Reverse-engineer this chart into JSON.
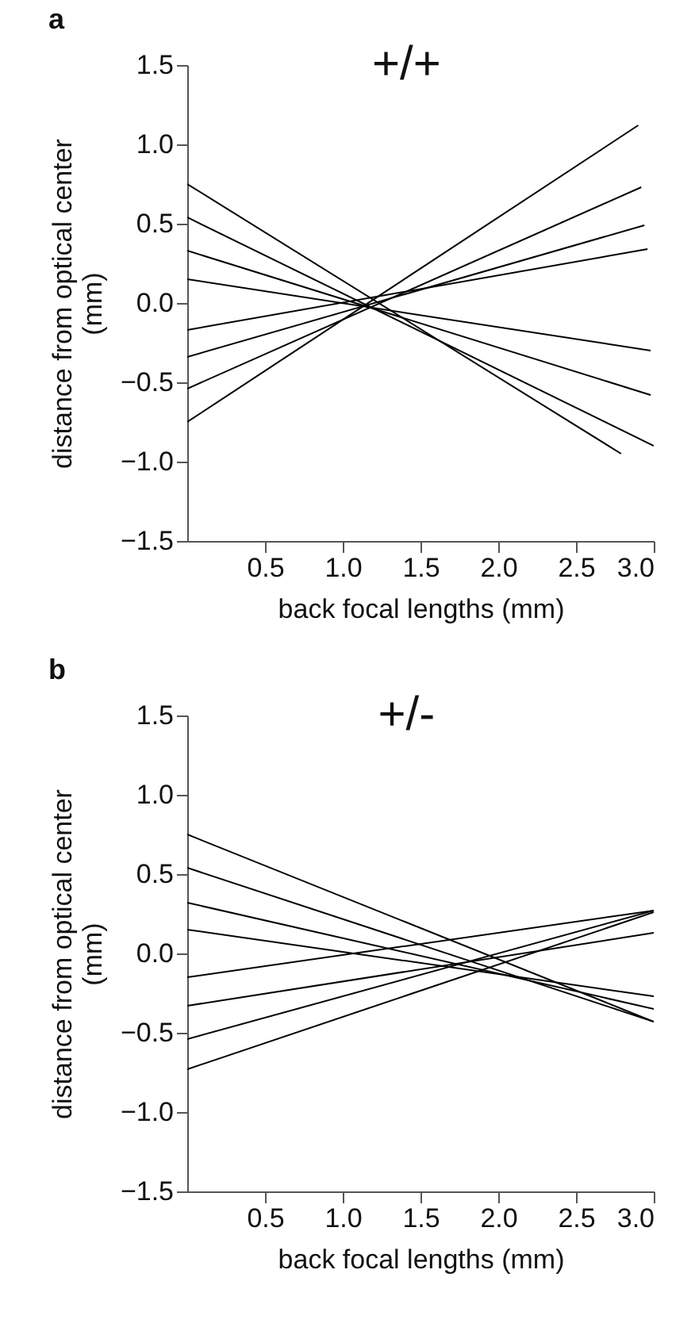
{
  "chart_data": [
    {
      "type": "line",
      "xlabel": "back focal lengths (mm)",
      "ylabel": "distance from optical center (mm)",
      "annotations": [
        "a",
        "+/+"
      ],
      "xlim": [
        0,
        3
      ],
      "ylim": [
        -1.5,
        1.5
      ],
      "xticks": [
        0.5,
        {
          "value": 1,
          "label": "1.0"
        },
        1.5,
        {
          "value": 2,
          "label": "2.0"
        },
        2.5,
        {
          "value": 3,
          "label": "3.0"
        }
      ],
      "yticks": [
        -1.5,
        {
          "value": -1,
          "label": "−1.0"
        },
        -0.5,
        {
          "value": 0,
          "label": "0.0"
        },
        0.5,
        {
          "value": 1,
          "label": "1.0"
        },
        1.5
      ],
      "marker": "none",
      "line_style": "solid",
      "series": [
        {
          "color": "#000000",
          "x": [
            0,
            2.79
          ],
          "values": [
            0.75,
            -0.95
          ]
        },
        {
          "color": "#000000",
          "x": [
            0,
            3.0
          ],
          "values": [
            0.54,
            -0.9
          ]
        },
        {
          "color": "#000000",
          "x": [
            0,
            2.98
          ],
          "values": [
            0.33,
            -0.58
          ]
        },
        {
          "color": "#000000",
          "x": [
            0,
            2.98
          ],
          "values": [
            0.15,
            -0.3
          ]
        },
        {
          "color": "#000000",
          "x": [
            0,
            2.96
          ],
          "values": [
            -0.17,
            0.34
          ]
        },
        {
          "color": "#000000",
          "x": [
            0,
            2.94
          ],
          "values": [
            -0.34,
            0.49
          ]
        },
        {
          "color": "#000000",
          "x": [
            0,
            2.92
          ],
          "values": [
            -0.54,
            0.73
          ]
        },
        {
          "color": "#000000",
          "x": [
            0,
            2.9
          ],
          "values": [
            -0.75,
            1.12
          ]
        }
      ]
    },
    {
      "type": "line",
      "xlabel": "back focal lengths (mm)",
      "ylabel": "distance from optical center (mm)",
      "annotations": [
        "b",
        "+/-"
      ],
      "xlim": [
        0,
        3
      ],
      "ylim": [
        -1.5,
        1.5
      ],
      "xticks": [
        0.5,
        {
          "value": 1,
          "label": "1.0"
        },
        1.5,
        {
          "value": 2,
          "label": "2.0"
        },
        2.5,
        {
          "value": 3,
          "label": "3.0"
        }
      ],
      "yticks": [
        -1.5,
        {
          "value": -1,
          "label": "−1.0"
        },
        -0.5,
        {
          "value": 0,
          "label": "0.0"
        },
        0.5,
        {
          "value": 1,
          "label": "1.0"
        },
        1.5
      ],
      "marker": "none",
      "line_style": "solid",
      "series": [
        {
          "color": "#000000",
          "x": [
            0,
            3.0
          ],
          "values": [
            0.75,
            -0.43
          ]
        },
        {
          "color": "#000000",
          "x": [
            0,
            3.0
          ],
          "values": [
            0.54,
            -0.43
          ]
        },
        {
          "color": "#000000",
          "x": [
            0,
            3.0
          ],
          "values": [
            0.32,
            -0.35
          ]
        },
        {
          "color": "#000000",
          "x": [
            0,
            3.0
          ],
          "values": [
            0.15,
            -0.27
          ]
        },
        {
          "color": "#000000",
          "x": [
            0,
            3.0
          ],
          "values": [
            -0.15,
            0.27
          ]
        },
        {
          "color": "#000000",
          "x": [
            0,
            3.0
          ],
          "values": [
            -0.33,
            0.13
          ]
        },
        {
          "color": "#000000",
          "x": [
            0,
            3.0
          ],
          "values": [
            -0.54,
            0.27
          ]
        },
        {
          "color": "#000000",
          "x": [
            0,
            3.0
          ],
          "values": [
            -0.73,
            0.26
          ]
        }
      ]
    }
  ]
}
